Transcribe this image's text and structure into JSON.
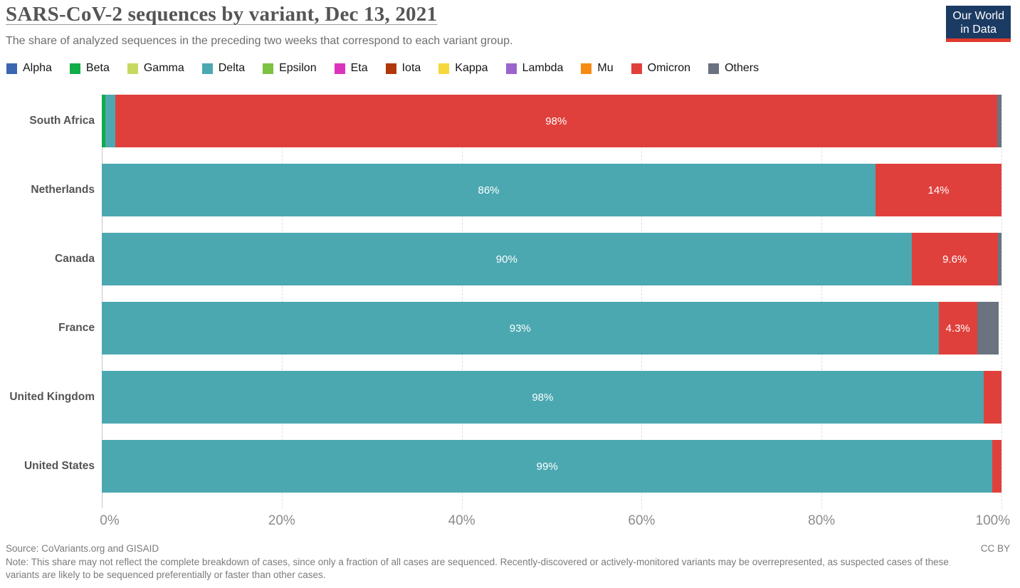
{
  "header": {
    "title": "SARS-CoV-2 sequences by variant, Dec 13, 2021",
    "subtitle": "The share of analyzed sequences in the preceding two weeks that correspond to each variant group.",
    "logo_line1": "Our World",
    "logo_line2": "in Data"
  },
  "variant_colors": {
    "Alpha": "#3c66b1",
    "Beta": "#10ad49",
    "Gamma": "#c8d962",
    "Delta": "#4ba8b1",
    "Epsilon": "#7cc143",
    "Eta": "#dc33be",
    "Iota": "#b1380b",
    "Kappa": "#f5d83c",
    "Lambda": "#9b64cc",
    "Mu": "#f68a15",
    "Omicron": "#e0403c",
    "Others": "#6b7280"
  },
  "legend": [
    "Alpha",
    "Beta",
    "Gamma",
    "Delta",
    "Epsilon",
    "Eta",
    "Iota",
    "Kappa",
    "Lambda",
    "Mu",
    "Omicron",
    "Others"
  ],
  "chart_data": {
    "type": "bar",
    "orientation": "horizontal-stacked",
    "title": "SARS-CoV-2 sequences by variant, Dec 13, 2021",
    "xlabel": "",
    "ylabel": "",
    "xlim": [
      0,
      100
    ],
    "grid": "dashed-vertical",
    "categories": [
      "South Africa",
      "Netherlands",
      "Canada",
      "France",
      "United Kingdom",
      "United States"
    ],
    "ticks": [
      {
        "label": "0%",
        "value": 0
      },
      {
        "label": "20%",
        "value": 20
      },
      {
        "label": "40%",
        "value": 40
      },
      {
        "label": "60%",
        "value": 60
      },
      {
        "label": "80%",
        "value": 80
      },
      {
        "label": "100%",
        "value": 100
      }
    ],
    "rows": [
      {
        "country": "South Africa",
        "segments": [
          {
            "variant": "Beta",
            "value": 0.4,
            "label": ""
          },
          {
            "variant": "Delta",
            "value": 1.1,
            "label": ""
          },
          {
            "variant": "Omicron",
            "value": 98,
            "label": "98%"
          },
          {
            "variant": "Others",
            "value": 0.5,
            "label": ""
          }
        ]
      },
      {
        "country": "Netherlands",
        "segments": [
          {
            "variant": "Delta",
            "value": 86,
            "label": "86%"
          },
          {
            "variant": "Omicron",
            "value": 14,
            "label": "14%"
          }
        ]
      },
      {
        "country": "Canada",
        "segments": [
          {
            "variant": "Delta",
            "value": 90,
            "label": "90%"
          },
          {
            "variant": "Omicron",
            "value": 9.6,
            "label": "9.6%"
          },
          {
            "variant": "Others",
            "value": 0.4,
            "label": ""
          }
        ]
      },
      {
        "country": "France",
        "segments": [
          {
            "variant": "Delta",
            "value": 93,
            "label": "93%"
          },
          {
            "variant": "Omicron",
            "value": 4.3,
            "label": "4.3%"
          },
          {
            "variant": "Others",
            "value": 2.4,
            "label": ""
          }
        ]
      },
      {
        "country": "United Kingdom",
        "segments": [
          {
            "variant": "Delta",
            "value": 98,
            "label": "98%"
          },
          {
            "variant": "Omicron",
            "value": 2,
            "label": ""
          }
        ]
      },
      {
        "country": "United States",
        "segments": [
          {
            "variant": "Delta",
            "value": 99,
            "label": "99%"
          },
          {
            "variant": "Omicron",
            "value": 1,
            "label": ""
          }
        ]
      }
    ]
  },
  "footer": {
    "source": "Source: CoVariants.org and GISAID",
    "license": "CC BY",
    "note": "Note: This share may not reflect the complete breakdown of cases, since only a fraction of all cases are sequenced. Recently-discovered or actively-monitored variants may be overrepresented, as suspected cases of these variants are likely to be sequenced preferentially or faster than other cases."
  }
}
